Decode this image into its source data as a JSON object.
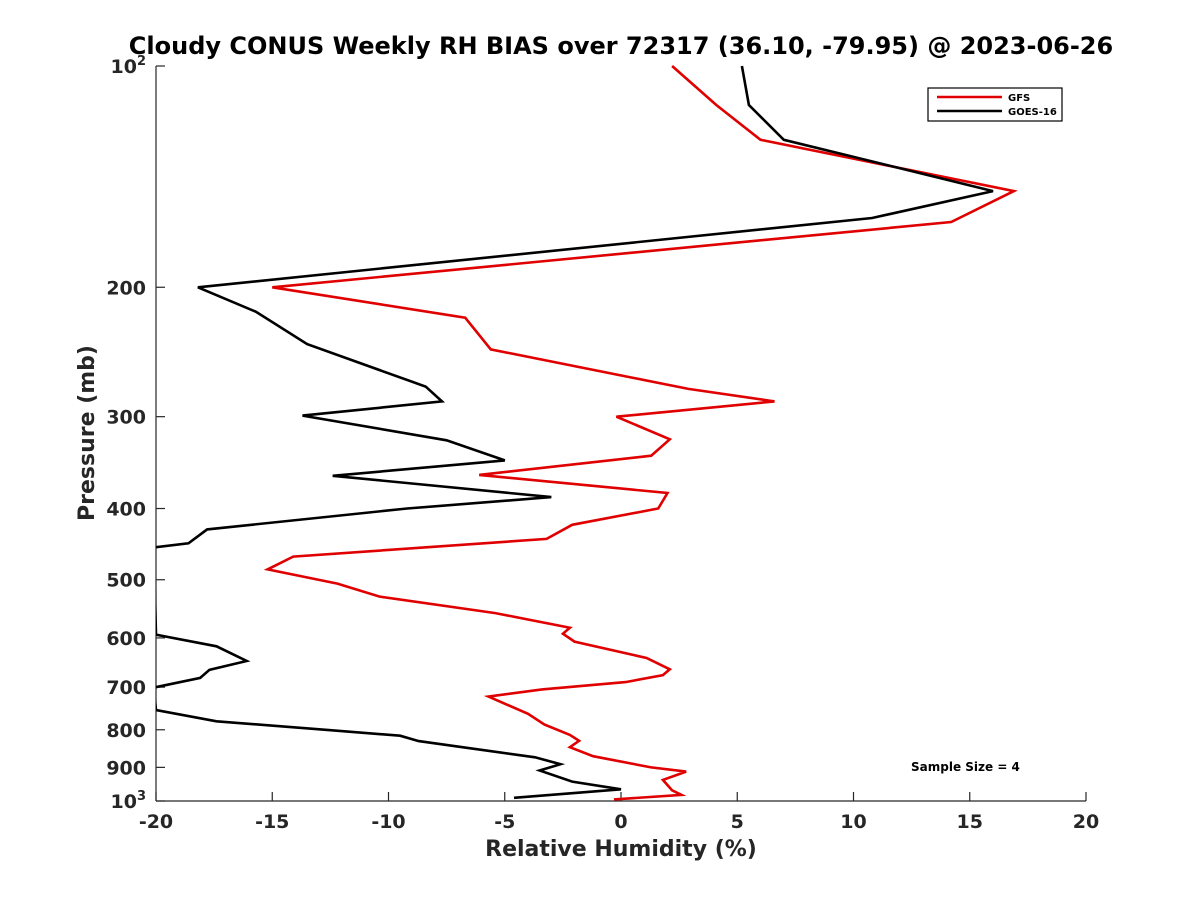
{
  "chart_data": {
    "type": "line",
    "title": "Cloudy CONUS Weekly RH BIAS over 72317 (36.10, -79.95) @ 2023-06-26",
    "xlabel": "Relative Humidity (%)",
    "ylabel": "Pressure (mb)",
    "xlim": [
      -20,
      20
    ],
    "ylim": [
      100,
      1000
    ],
    "y_scale": "log",
    "y_reversed": true,
    "grid": false,
    "x_ticks": [
      "-20",
      "-15",
      "-10",
      "-5",
      "0",
      "5",
      "10",
      "15",
      "20"
    ],
    "y_ticks": [
      {
        "value": 100,
        "base": "10",
        "exp": "2"
      },
      {
        "value": 200,
        "label": "200"
      },
      {
        "value": 300,
        "label": "300"
      },
      {
        "value": 400,
        "label": "400"
      },
      {
        "value": 500,
        "label": "500"
      },
      {
        "value": 600,
        "label": "600"
      },
      {
        "value": 700,
        "label": "700"
      },
      {
        "value": 800,
        "label": "800"
      },
      {
        "value": 900,
        "label": "900"
      },
      {
        "value": 1000,
        "base": "10",
        "exp": "3"
      }
    ],
    "legend_position": "top-right",
    "annotation": "Sample Size = 4",
    "series": [
      {
        "name": "GFS",
        "color": "#e00000",
        "points": [
          [
            2.2,
            100
          ],
          [
            4.1,
            113
          ],
          [
            6.0,
            126
          ],
          [
            16.9,
            148
          ],
          [
            14.2,
            163
          ],
          [
            -15.0,
            200
          ],
          [
            -6.7,
            220
          ],
          [
            -5.6,
            243
          ],
          [
            2.9,
            275
          ],
          [
            6.6,
            286
          ],
          [
            -0.2,
            300
          ],
          [
            2.1,
            322
          ],
          [
            1.3,
            339
          ],
          [
            -6.1,
            360
          ],
          [
            2.0,
            381
          ],
          [
            1.6,
            400
          ],
          [
            -2.1,
            421
          ],
          [
            -3.2,
            440
          ],
          [
            -14.1,
            465
          ],
          [
            -15.2,
            484
          ],
          [
            -12.2,
            506
          ],
          [
            -10.4,
            527
          ],
          [
            -5.4,
            555
          ],
          [
            -2.2,
            581
          ],
          [
            -2.5,
            592
          ],
          [
            -2.0,
            607
          ],
          [
            1.1,
            639
          ],
          [
            2.1,
            662
          ],
          [
            1.8,
            674
          ],
          [
            0.2,
            689
          ],
          [
            -3.4,
            705
          ],
          [
            -5.7,
            721
          ],
          [
            -4.0,
            761
          ],
          [
            -3.3,
            787
          ],
          [
            -2.2,
            813
          ],
          [
            -1.8,
            828
          ],
          [
            -2.2,
            845
          ],
          [
            -1.2,
            869
          ],
          [
            1.3,
            900
          ],
          [
            2.8,
            912
          ],
          [
            1.8,
            936
          ],
          [
            2.2,
            967
          ],
          [
            2.6,
            981
          ],
          [
            -0.3,
            995
          ]
        ]
      },
      {
        "name": "GOES-16",
        "color": "#000000",
        "points": [
          [
            5.2,
            100
          ],
          [
            5.5,
            113
          ],
          [
            7.0,
            126
          ],
          [
            16.0,
            148
          ],
          [
            10.8,
            161
          ],
          [
            -18.2,
            200
          ],
          [
            -15.7,
            216
          ],
          [
            -13.5,
            239
          ],
          [
            -8.4,
            273
          ],
          [
            -7.7,
            286
          ],
          [
            -13.7,
            299
          ],
          [
            -7.5,
            323
          ],
          [
            -5.0,
            344
          ],
          [
            -12.4,
            361
          ],
          [
            -3.0,
            386
          ],
          [
            -9.2,
            400
          ],
          [
            -17.8,
            427
          ],
          [
            -18.6,
            446
          ],
          [
            -20.1,
            452
          ],
          [
            -20.0,
            594
          ],
          [
            -17.4,
            616
          ],
          [
            -16.1,
            645
          ],
          [
            -17.7,
            663
          ],
          [
            -18.1,
            680
          ],
          [
            -20.1,
            701
          ],
          [
            -20.0,
            752
          ],
          [
            -17.4,
            779
          ],
          [
            -12.5,
            801
          ],
          [
            -9.5,
            815
          ],
          [
            -8.7,
            829
          ],
          [
            -6.9,
            844
          ],
          [
            -3.7,
            872
          ],
          [
            -2.6,
            891
          ],
          [
            -3.5,
            909
          ],
          [
            -2.1,
            941
          ],
          [
            0.0,
            964
          ],
          [
            -4.6,
            990
          ]
        ]
      }
    ]
  }
}
